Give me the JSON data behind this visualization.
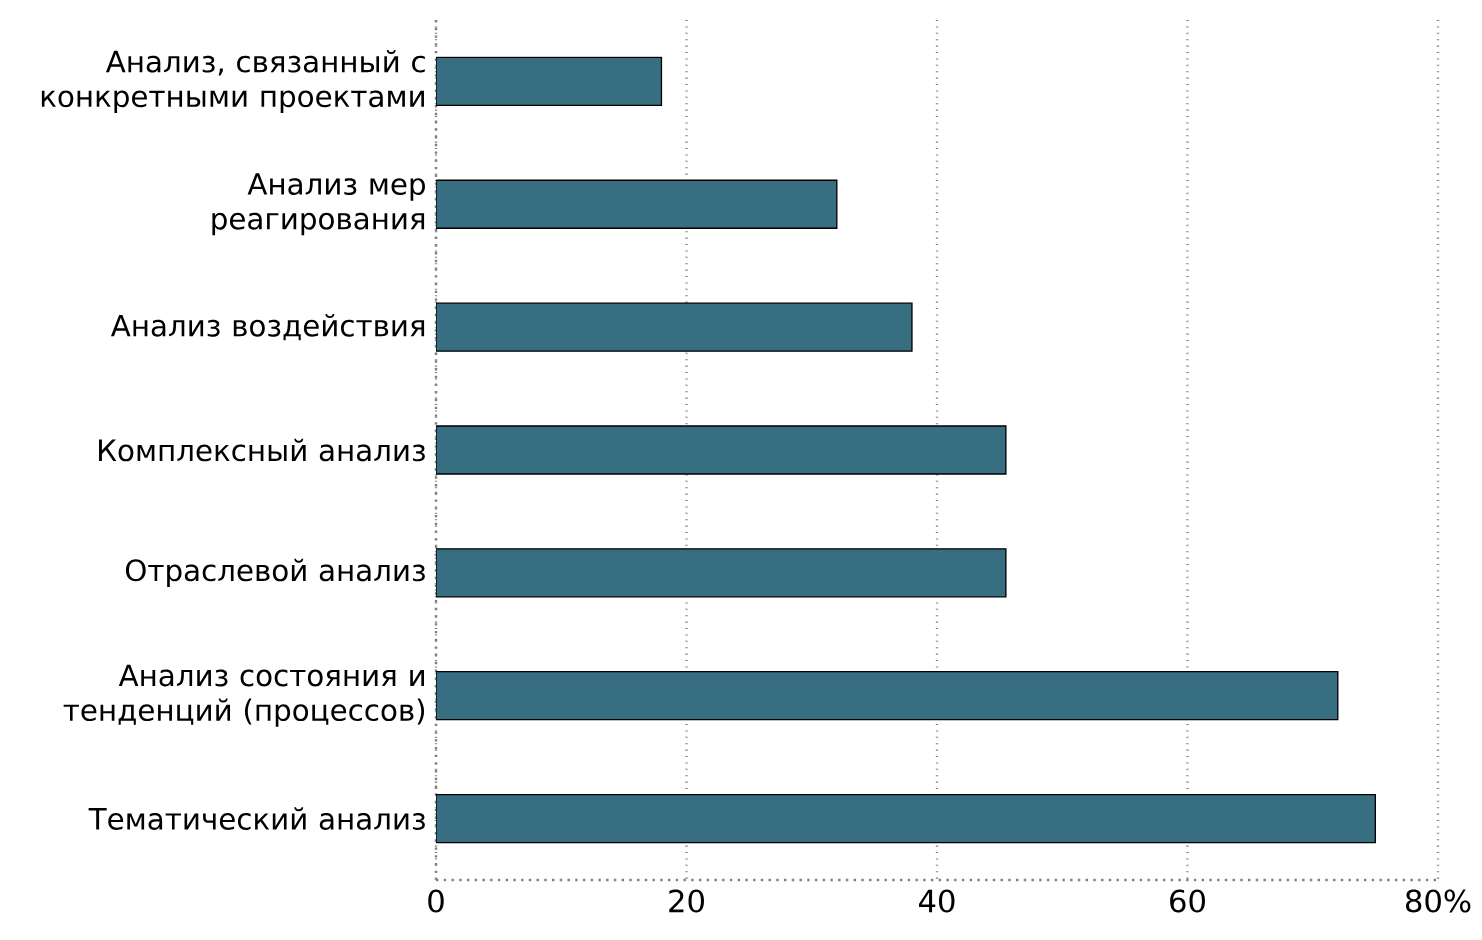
{
  "chart_data": {
    "type": "bar",
    "orientation": "horizontal",
    "categories": [
      "Анализ, связанный с конкретными проектами",
      "Анализ мер реагирования",
      "Анализ воздействия",
      "Комплексный анализ",
      "Отраслевой анализ",
      "Анализ состояния и тенденций (процессов)",
      "Тематический анализ"
    ],
    "values": [
      18,
      32,
      38,
      45.5,
      45.5,
      72,
      75
    ],
    "color": "#376e82",
    "xlim": [
      0,
      80
    ],
    "xticks": [
      0,
      20,
      40,
      60,
      {
        "value": 80,
        "label": "80%"
      }
    ],
    "grid": "x"
  }
}
